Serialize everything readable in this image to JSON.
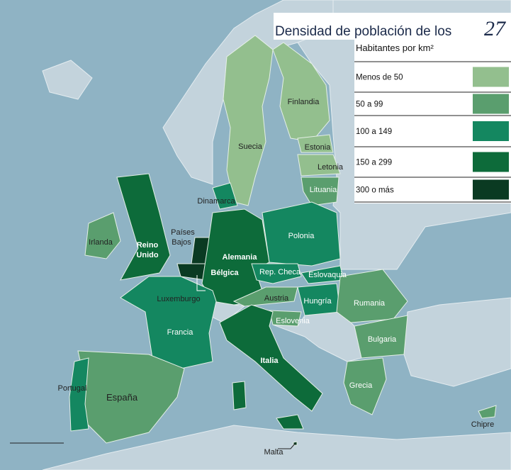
{
  "header": {
    "title": "Densidad de población de los",
    "title_number": "27"
  },
  "legend": {
    "title": "Habitantes por km²",
    "items": [
      {
        "label": "Menos de 50",
        "color": "#93bf8e"
      },
      {
        "label": "50 a 99",
        "color": "#5a9e6e"
      },
      {
        "label": "100 a 149",
        "color": "#148760"
      },
      {
        "label": "150 a 299",
        "color": "#0d6b3a"
      },
      {
        "label": "300 o más",
        "color": "#0a3a22"
      }
    ]
  },
  "country_labels": [
    "Suecia",
    "Finlandia",
    "Estonia",
    "Letonia",
    "Lituania",
    "Dinamarca",
    [
      "Países",
      "Bajos"
    ],
    "Irlanda",
    [
      "Reino",
      "Unido"
    ],
    "Alemania",
    "Polonia",
    "Bélgica",
    "Rep. Checa",
    "Eslovaquia",
    "Luxemburgo",
    "Austria",
    "Hungría",
    "Rumania",
    "Eslovenia",
    "Francia",
    "Italia",
    "Bulgaria",
    "Grecia",
    "Portugal",
    "España",
    "Chipre",
    "Malta"
  ]
}
